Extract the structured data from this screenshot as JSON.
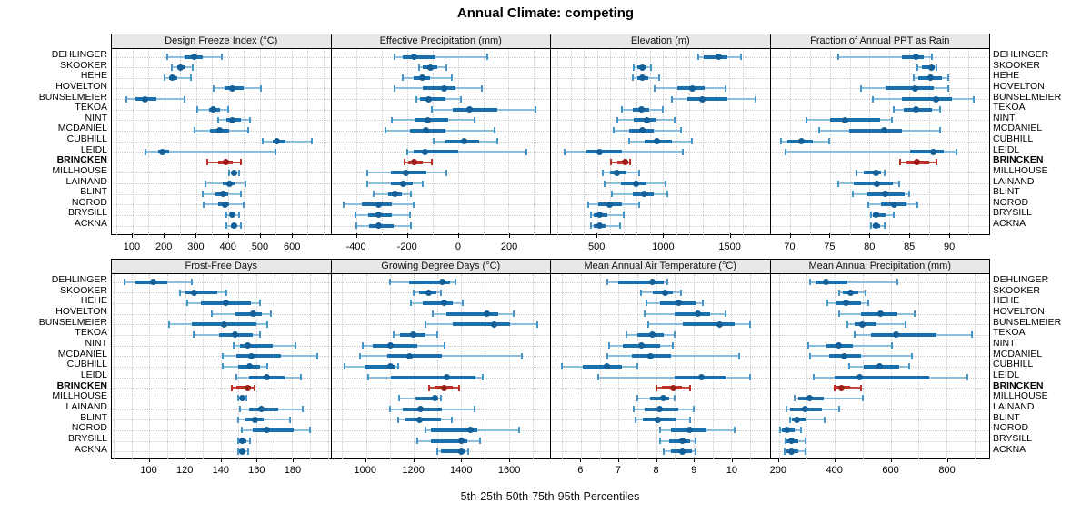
{
  "title": "Annual Climate: competing",
  "caption": "5th-25th-50th-75th-95th Percentiles",
  "highlight_station": "BRINCKEN",
  "stations": [
    "DEHLINGER",
    "SKOOKER",
    "HEHE",
    "HOVELTON",
    "BUNSELMEIER",
    "TEKOA",
    "NINT",
    "MCDANIEL",
    "CUBHILL",
    "LEIDL",
    "BRINCKEN",
    "MILLHOUSE",
    "LAINAND",
    "BLINT",
    "NOROD",
    "BRYSILL",
    "ACKNA"
  ],
  "colors": {
    "blue_whisker": "#8cbedd",
    "blue_cap": "#4695c8",
    "blue_box": "#1a6fad",
    "blue_dot": "#135f97",
    "red_whisker": "#c2453c",
    "red_cap": "#bd2f27",
    "red_box": "#bd2f27",
    "red_dot": "#9c1f18",
    "grid": "#c8c8c8",
    "header_bg": "#e8e8e8",
    "border": "#000000"
  },
  "chart_data": {
    "type": "dotplot-percentiles",
    "percentile_levels": [
      5,
      25,
      50,
      75,
      95
    ],
    "layout": "2 rows x 4 columns, stations on y-axis (both sides), BRINCKEN highlighted red",
    "panels": [
      {
        "title": "Design Freeze Index (°C)",
        "domain": [
          35,
          720
        ],
        "ticks": [
          100,
          200,
          300,
          400,
          500,
          600
        ],
        "grid_step": 50,
        "values": [
          [
            210,
            265,
            295,
            320,
            380
          ],
          [
            225,
            240,
            250,
            265,
            290
          ],
          [
            200,
            215,
            225,
            240,
            285
          ],
          [
            355,
            390,
            415,
            450,
            505
          ],
          [
            80,
            110,
            140,
            175,
            265
          ],
          [
            305,
            340,
            355,
            375,
            400
          ],
          [
            370,
            395,
            415,
            440,
            470
          ],
          [
            295,
            345,
            375,
            405,
            465
          ],
          [
            510,
            540,
            555,
            580,
            665
          ],
          [
            140,
            180,
            195,
            215,
            550
          ],
          [
            335,
            370,
            395,
            415,
            440
          ],
          [
            405,
            415,
            420,
            425,
            435
          ],
          [
            330,
            385,
            405,
            420,
            455
          ],
          [
            320,
            360,
            385,
            400,
            440
          ],
          [
            325,
            370,
            390,
            405,
            450
          ],
          [
            395,
            410,
            415,
            420,
            435
          ],
          [
            395,
            410,
            420,
            425,
            440
          ]
        ]
      },
      {
        "title": "Effective Precipitation (mm)",
        "domain": [
          -500,
          360
        ],
        "ticks": [
          -400,
          -200,
          0,
          200
        ],
        "grid_step": 100,
        "values": [
          [
            -250,
            -220,
            -175,
            -90,
            115
          ],
          [
            -155,
            -140,
            -110,
            -80,
            -45
          ],
          [
            -220,
            -175,
            -140,
            -110,
            -25
          ],
          [
            -250,
            -140,
            -55,
            -10,
            95
          ],
          [
            -165,
            -150,
            -115,
            -50,
            10
          ],
          [
            -105,
            -20,
            45,
            155,
            305
          ],
          [
            -260,
            -170,
            -120,
            -40,
            65
          ],
          [
            -285,
            -190,
            -125,
            -50,
            145
          ],
          [
            -95,
            -50,
            25,
            85,
            155
          ],
          [
            -200,
            -175,
            -130,
            0,
            270
          ],
          [
            -210,
            -195,
            -175,
            -140,
            -105
          ],
          [
            -360,
            -265,
            -205,
            -125,
            -45
          ],
          [
            -360,
            -265,
            -215,
            -180,
            -140
          ],
          [
            -335,
            -275,
            -250,
            -220,
            -185
          ],
          [
            -450,
            -380,
            -315,
            -260,
            -175
          ],
          [
            -405,
            -355,
            -315,
            -260,
            -190
          ],
          [
            -400,
            -350,
            -315,
            -255,
            -185
          ]
        ]
      },
      {
        "title": "Elevation (m)",
        "domain": [
          150,
          1800
        ],
        "ticks": [
          500,
          1000,
          1500
        ],
        "grid_step": 100,
        "values": [
          [
            1265,
            1310,
            1420,
            1485,
            1590
          ],
          [
            780,
            805,
            840,
            875,
            905
          ],
          [
            770,
            805,
            845,
            885,
            970
          ],
          [
            935,
            1110,
            1220,
            1315,
            1470
          ],
          [
            1065,
            1180,
            1300,
            1485,
            1700
          ],
          [
            685,
            770,
            835,
            895,
            1000
          ],
          [
            655,
            780,
            875,
            940,
            1085
          ],
          [
            625,
            745,
            840,
            930,
            1135
          ],
          [
            745,
            860,
            955,
            1065,
            1220
          ],
          [
            255,
            415,
            520,
            690,
            1150
          ],
          [
            605,
            655,
            710,
            735,
            750
          ],
          [
            545,
            600,
            650,
            720,
            815
          ],
          [
            555,
            680,
            795,
            875,
            1015
          ],
          [
            610,
            770,
            855,
            930,
            1030
          ],
          [
            430,
            505,
            595,
            690,
            815
          ],
          [
            450,
            475,
            515,
            575,
            700
          ],
          [
            450,
            475,
            515,
            565,
            670
          ]
        ]
      },
      {
        "title": "Fraction of Annual PPT as Rain",
        "domain": [
          67.5,
          95
        ],
        "ticks": [
          70,
          75,
          80,
          85,
          90
        ],
        "grid_step": 2.5,
        "values": [
          [
            76,
            84.1,
            85.9,
            86.8,
            87.9
          ],
          [
            86,
            86.6,
            87.8,
            88.2,
            88.5
          ],
          [
            85.6,
            86.2,
            87.7,
            89.1,
            89.9
          ],
          [
            78.9,
            82,
            85.8,
            88.1,
            89.9
          ],
          [
            80.4,
            84.1,
            88.4,
            90.4,
            93.1
          ],
          [
            83,
            84.3,
            85.9,
            87.9,
            88.9
          ],
          [
            72,
            75,
            76.9,
            81.4,
            82.8
          ],
          [
            73.6,
            77.4,
            81.9,
            84.1,
            88.9
          ],
          [
            68.8,
            69.6,
            71.4,
            72.9,
            74.9
          ],
          [
            69.4,
            85.1,
            88,
            89.4,
            91
          ],
          [
            83.9,
            84.7,
            86,
            87.5,
            88.4
          ],
          [
            78.4,
            79.3,
            80.8,
            81.4,
            81.9
          ],
          [
            76,
            78,
            80.9,
            83,
            83.7
          ],
          [
            77.9,
            79.7,
            82,
            84.4,
            85
          ],
          [
            79.8,
            81.4,
            83.1,
            84.7,
            86
          ],
          [
            80.2,
            80.4,
            80.8,
            82,
            83
          ],
          [
            80.2,
            80.4,
            80.8,
            81.4,
            81.9
          ]
        ]
      },
      {
        "title": "Frost-Free Days",
        "domain": [
          79,
          201
        ],
        "ticks": [
          100,
          120,
          140,
          160,
          180
        ],
        "grid_step": 10,
        "values": [
          [
            86,
            92,
            102,
            110,
            124
          ],
          [
            117,
            120,
            125,
            138,
            143
          ],
          [
            121,
            129,
            143,
            157,
            162
          ],
          [
            135,
            148,
            158,
            163,
            168
          ],
          [
            111,
            124,
            142,
            160,
            166
          ],
          [
            125,
            139,
            148,
            158,
            162
          ],
          [
            147,
            151,
            155,
            169,
            182
          ],
          [
            141,
            149,
            157,
            174,
            194
          ],
          [
            141,
            150,
            156,
            162,
            166
          ],
          [
            149,
            156,
            166,
            176,
            185
          ],
          [
            146,
            149,
            155,
            157,
            159
          ],
          [
            150,
            151,
            152,
            153.5,
            154.5
          ],
          [
            151,
            156,
            163,
            172,
            186
          ],
          [
            150,
            154,
            159,
            164,
            179
          ],
          [
            152,
            158,
            166,
            181,
            190
          ],
          [
            150,
            150.5,
            152,
            154.5,
            156.5
          ],
          [
            150,
            150.5,
            152,
            153.5,
            155.5
          ]
        ]
      },
      {
        "title": "Growing Degree Days (°C)",
        "domain": [
          855,
          1770
        ],
        "ticks": [
          1000,
          1200,
          1400,
          1600
        ],
        "grid_step": 100,
        "values": [
          [
            1100,
            1180,
            1320,
            1355,
            1375
          ],
          [
            1200,
            1225,
            1265,
            1295,
            1315
          ],
          [
            1190,
            1240,
            1330,
            1365,
            1405
          ],
          [
            1280,
            1340,
            1510,
            1555,
            1620
          ],
          [
            1250,
            1365,
            1540,
            1605,
            1720
          ],
          [
            1115,
            1145,
            1200,
            1250,
            1300
          ],
          [
            985,
            1030,
            1105,
            1215,
            1330
          ],
          [
            975,
            1090,
            1185,
            1320,
            1655
          ],
          [
            910,
            995,
            1105,
            1125,
            1135
          ],
          [
            1010,
            1105,
            1340,
            1460,
            1490
          ],
          [
            1265,
            1290,
            1330,
            1365,
            1390
          ],
          [
            1140,
            1210,
            1290,
            1305,
            1315
          ],
          [
            1100,
            1155,
            1230,
            1320,
            1455
          ],
          [
            1135,
            1165,
            1225,
            1315,
            1360
          ],
          [
            1250,
            1275,
            1440,
            1470,
            1645
          ],
          [
            1215,
            1275,
            1400,
            1425,
            1480
          ],
          [
            1300,
            1315,
            1400,
            1420,
            1430
          ]
        ]
      },
      {
        "title": "Mean Annual Air Temperature (°C)",
        "domain": [
          5.2,
          11
        ],
        "ticks": [
          6,
          7,
          8,
          9,
          10
        ],
        "grid_step": 0.5,
        "values": [
          [
            6.7,
            7.0,
            7.9,
            8.2,
            8.3
          ],
          [
            7.6,
            7.9,
            8.25,
            8.45,
            8.65
          ],
          [
            7.75,
            8.1,
            8.6,
            9.05,
            9.25
          ],
          [
            7.7,
            8.5,
            9.1,
            9.45,
            9.85
          ],
          [
            7.8,
            8.7,
            9.7,
            10.1,
            10.5
          ],
          [
            7.2,
            7.5,
            7.9,
            8.2,
            8.5
          ],
          [
            6.75,
            7.1,
            7.6,
            8.1,
            8.45
          ],
          [
            6.7,
            7.35,
            7.85,
            8.4,
            10.2
          ],
          [
            5.5,
            6.05,
            6.7,
            7.1,
            7.5
          ],
          [
            6.45,
            8.5,
            9.2,
            9.85,
            10.5
          ],
          [
            8.0,
            8.15,
            8.45,
            8.7,
            8.9
          ],
          [
            7.5,
            7.85,
            8.2,
            8.35,
            8.5
          ],
          [
            7.4,
            7.7,
            8.1,
            8.6,
            9.0
          ],
          [
            7.45,
            7.65,
            8.05,
            8.55,
            8.9
          ],
          [
            8.1,
            8.4,
            8.9,
            9.35,
            10.1
          ],
          [
            8.1,
            8.35,
            8.7,
            8.9,
            9.05
          ],
          [
            8.2,
            8.4,
            8.7,
            8.95,
            9.05
          ]
        ]
      },
      {
        "title": "Mean Annual Precipitation (mm)",
        "domain": [
          170,
          950
        ],
        "ticks": [
          200,
          400,
          600,
          800
        ],
        "grid_step": 100,
        "values": [
          [
            310,
            330,
            370,
            446,
            625
          ],
          [
            415,
            430,
            457,
            485,
            510
          ],
          [
            375,
            405,
            440,
            495,
            520
          ],
          [
            415,
            495,
            565,
            625,
            685
          ],
          [
            445,
            470,
            500,
            550,
            655
          ],
          [
            470,
            530,
            620,
            765,
            890
          ],
          [
            305,
            370,
            415,
            465,
            605
          ],
          [
            310,
            380,
            435,
            495,
            675
          ],
          [
            450,
            505,
            560,
            630,
            665
          ],
          [
            325,
            400,
            490,
            740,
            875
          ],
          [
            400,
            405,
            423,
            455,
            495
          ],
          [
            255,
            270,
            310,
            360,
            500
          ],
          [
            227,
            240,
            295,
            353,
            417
          ],
          [
            240,
            245,
            265,
            295,
            365
          ],
          [
            205,
            212,
            230,
            255,
            280
          ],
          [
            222,
            228,
            245,
            270,
            295
          ],
          [
            220,
            227,
            244,
            268,
            295
          ]
        ]
      }
    ]
  }
}
